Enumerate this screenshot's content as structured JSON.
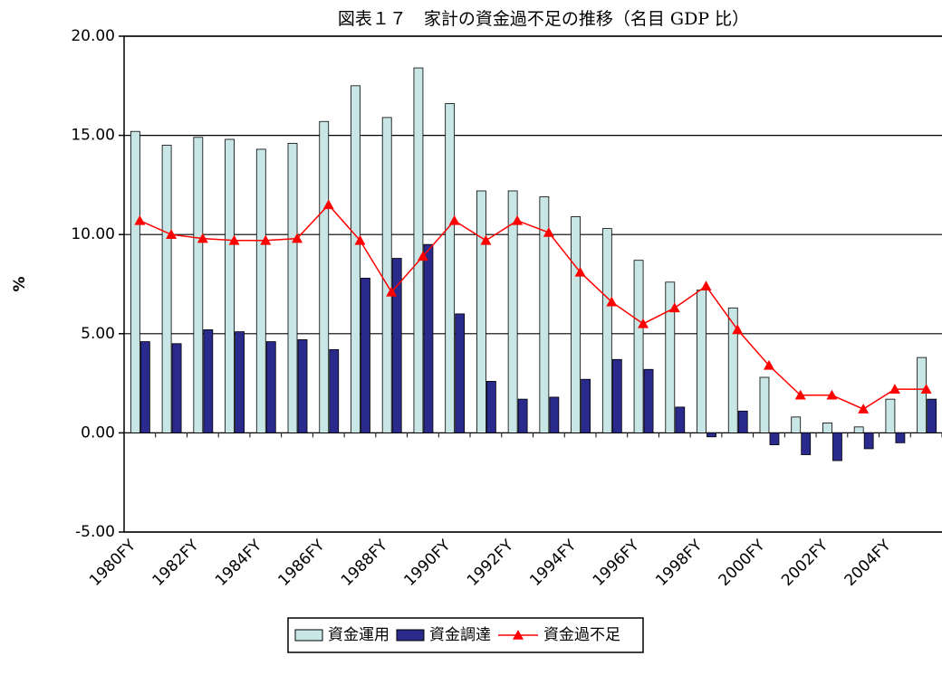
{
  "chart_data": {
    "type": "bar_line",
    "title": "図表１７　家計の資金過不足の推移（名目 GDP 比）",
    "y_label": "%",
    "categories": [
      "1980FY",
      null,
      "1982FY",
      null,
      "1984FY",
      null,
      "1986FY",
      null,
      "1988FY",
      null,
      "1990FY",
      null,
      "1992FY",
      null,
      "1994FY",
      null,
      "1996FY",
      null,
      "1998FY",
      null,
      "2000FY",
      null,
      "2002FY",
      null,
      "2004FY",
      null
    ],
    "series": [
      {
        "name": "資金運用",
        "type": "bar",
        "color": "#c8e6e6",
        "values": [
          15.2,
          14.5,
          14.9,
          14.8,
          14.3,
          14.6,
          15.7,
          17.5,
          15.9,
          18.4,
          16.6,
          12.2,
          12.2,
          11.9,
          10.9,
          10.3,
          8.7,
          7.6,
          7.2,
          6.3,
          2.8,
          0.8,
          0.5,
          0.3,
          1.7,
          3.8
        ]
      },
      {
        "name": "資金調達",
        "type": "bar",
        "color": "#2a2a8c",
        "values": [
          4.6,
          4.5,
          5.2,
          5.1,
          4.6,
          4.7,
          4.2,
          7.8,
          8.8,
          9.5,
          6.0,
          2.6,
          1.7,
          1.8,
          2.7,
          3.7,
          3.2,
          1.3,
          -0.2,
          1.1,
          -0.6,
          -1.1,
          -1.4,
          -0.8,
          -0.5,
          1.7
        ]
      },
      {
        "name": "資金過不足",
        "type": "line",
        "color": "#ff0000",
        "values": [
          10.7,
          10.0,
          9.8,
          9.7,
          9.7,
          9.8,
          11.5,
          9.7,
          7.1,
          8.9,
          10.7,
          9.7,
          10.7,
          10.1,
          8.1,
          6.6,
          5.5,
          6.3,
          7.4,
          5.2,
          3.4,
          1.9,
          1.9,
          1.2,
          2.2,
          2.2
        ]
      }
    ],
    "ylim": [
      -5,
      20
    ],
    "yticks": [
      {
        "value": -5,
        "label": "-5.00"
      },
      {
        "value": 0,
        "label": "0.00"
      },
      {
        "value": 5,
        "label": "5.00"
      },
      {
        "value": 10,
        "label": "10.00"
      },
      {
        "value": 15,
        "label": "15.00"
      },
      {
        "value": 20,
        "label": "20.00"
      }
    ],
    "grid": true
  }
}
